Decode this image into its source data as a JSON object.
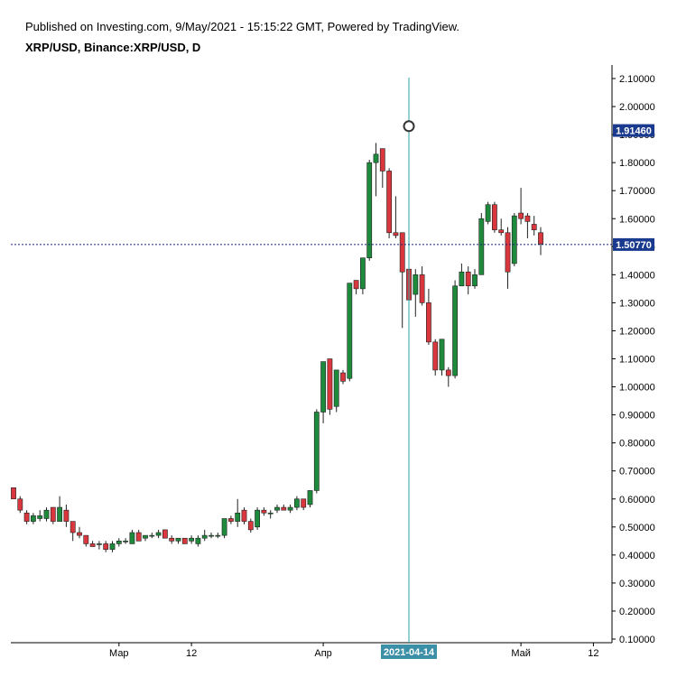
{
  "header": {
    "published": "Published on Investing.com, 9/May/2021 - 15:15:22 GMT, Powered by TradingView.",
    "symbol": "XRP/USD, Binance:XRP/USD, D"
  },
  "colors": {
    "up": "#1e8a3c",
    "down": "#d9363e",
    "crosshair_v": "#2aa4a4",
    "crosshair_h": "#1a237e",
    "price_tag": "#1a3a8f",
    "date_tag": "#3b8fa6",
    "marker": "#333333"
  },
  "chart_data": {
    "type": "candlestick",
    "y_ticks": [
      "2.10000",
      "2.00000",
      "1.90000",
      "1.80000",
      "1.70000",
      "1.60000",
      "1.50000",
      "1.40000",
      "1.30000",
      "1.20000",
      "1.10000",
      "1.00000",
      "0.90000",
      "0.80000",
      "0.70000",
      "0.60000",
      "0.50000",
      "0.40000",
      "0.30000",
      "0.20000",
      "0.10000"
    ],
    "y_tick_values": [
      2.1,
      2.0,
      1.9,
      1.8,
      1.7,
      1.6,
      1.5,
      1.4,
      1.3,
      1.2,
      1.1,
      1.0,
      0.9,
      0.8,
      0.7,
      0.6,
      0.5,
      0.4,
      0.3,
      0.2,
      0.1
    ],
    "ylim": [
      0.1,
      2.1
    ],
    "x_labels": [
      {
        "text": "Мар",
        "index": 16
      },
      {
        "text": "12",
        "index": 27
      },
      {
        "text": "Апр",
        "index": 47
      },
      {
        "text": "Май",
        "index": 77
      },
      {
        "text": "12",
        "index": 88
      }
    ],
    "crosshair": {
      "date_label": "2021-04-14",
      "index": 60,
      "price_label": "1.50770",
      "price": 1.5077,
      "marker_price": 1.93
    },
    "last_price_label": "1.91460",
    "last_price": 1.9146,
    "candles": [
      {
        "o": 0.64,
        "h": 0.64,
        "l": 0.6,
        "c": 0.6
      },
      {
        "o": 0.6,
        "h": 0.61,
        "l": 0.55,
        "c": 0.56
      },
      {
        "o": 0.55,
        "h": 0.56,
        "l": 0.51,
        "c": 0.52
      },
      {
        "o": 0.52,
        "h": 0.55,
        "l": 0.51,
        "c": 0.54
      },
      {
        "o": 0.53,
        "h": 0.56,
        "l": 0.52,
        "c": 0.54
      },
      {
        "o": 0.53,
        "h": 0.57,
        "l": 0.52,
        "c": 0.56
      },
      {
        "o": 0.57,
        "h": 0.57,
        "l": 0.51,
        "c": 0.52
      },
      {
        "o": 0.52,
        "h": 0.61,
        "l": 0.52,
        "c": 0.57
      },
      {
        "o": 0.56,
        "h": 0.58,
        "l": 0.5,
        "c": 0.52
      },
      {
        "o": 0.52,
        "h": 0.52,
        "l": 0.45,
        "c": 0.48
      },
      {
        "o": 0.48,
        "h": 0.5,
        "l": 0.46,
        "c": 0.47
      },
      {
        "o": 0.47,
        "h": 0.47,
        "l": 0.43,
        "c": 0.44
      },
      {
        "o": 0.44,
        "h": 0.45,
        "l": 0.43,
        "c": 0.43
      },
      {
        "o": 0.44,
        "h": 0.45,
        "l": 0.42,
        "c": 0.44
      },
      {
        "o": 0.44,
        "h": 0.45,
        "l": 0.41,
        "c": 0.42
      },
      {
        "o": 0.42,
        "h": 0.45,
        "l": 0.41,
        "c": 0.44
      },
      {
        "o": 0.44,
        "h": 0.46,
        "l": 0.43,
        "c": 0.45
      },
      {
        "o": 0.45,
        "h": 0.46,
        "l": 0.44,
        "c": 0.45
      },
      {
        "o": 0.44,
        "h": 0.49,
        "l": 0.44,
        "c": 0.48
      },
      {
        "o": 0.48,
        "h": 0.49,
        "l": 0.45,
        "c": 0.45
      },
      {
        "o": 0.46,
        "h": 0.47,
        "l": 0.45,
        "c": 0.47
      },
      {
        "o": 0.47,
        "h": 0.48,
        "l": 0.46,
        "c": 0.47
      },
      {
        "o": 0.47,
        "h": 0.49,
        "l": 0.46,
        "c": 0.48
      },
      {
        "o": 0.49,
        "h": 0.49,
        "l": 0.46,
        "c": 0.46
      },
      {
        "o": 0.46,
        "h": 0.47,
        "l": 0.44,
        "c": 0.45
      },
      {
        "o": 0.45,
        "h": 0.46,
        "l": 0.44,
        "c": 0.46
      },
      {
        "o": 0.46,
        "h": 0.46,
        "l": 0.44,
        "c": 0.44
      },
      {
        "o": 0.45,
        "h": 0.47,
        "l": 0.44,
        "c": 0.46
      },
      {
        "o": 0.44,
        "h": 0.47,
        "l": 0.43,
        "c": 0.46
      },
      {
        "o": 0.46,
        "h": 0.49,
        "l": 0.45,
        "c": 0.47
      },
      {
        "o": 0.47,
        "h": 0.48,
        "l": 0.46,
        "c": 0.47
      },
      {
        "o": 0.47,
        "h": 0.48,
        "l": 0.46,
        "c": 0.47
      },
      {
        "o": 0.47,
        "h": 0.53,
        "l": 0.46,
        "c": 0.53
      },
      {
        "o": 0.53,
        "h": 0.54,
        "l": 0.51,
        "c": 0.52
      },
      {
        "o": 0.52,
        "h": 0.6,
        "l": 0.5,
        "c": 0.55
      },
      {
        "o": 0.56,
        "h": 0.57,
        "l": 0.51,
        "c": 0.52
      },
      {
        "o": 0.52,
        "h": 0.53,
        "l": 0.48,
        "c": 0.49
      },
      {
        "o": 0.5,
        "h": 0.57,
        "l": 0.49,
        "c": 0.56
      },
      {
        "o": 0.56,
        "h": 0.57,
        "l": 0.54,
        "c": 0.55
      },
      {
        "o": 0.55,
        "h": 0.56,
        "l": 0.53,
        "c": 0.55
      },
      {
        "o": 0.56,
        "h": 0.58,
        "l": 0.55,
        "c": 0.57
      },
      {
        "o": 0.57,
        "h": 0.58,
        "l": 0.56,
        "c": 0.56
      },
      {
        "o": 0.56,
        "h": 0.58,
        "l": 0.55,
        "c": 0.57
      },
      {
        "o": 0.57,
        "h": 0.61,
        "l": 0.56,
        "c": 0.6
      },
      {
        "o": 0.6,
        "h": 0.6,
        "l": 0.56,
        "c": 0.57
      },
      {
        "o": 0.58,
        "h": 0.63,
        "l": 0.57,
        "c": 0.63
      },
      {
        "o": 0.63,
        "h": 0.92,
        "l": 0.62,
        "c": 0.91
      },
      {
        "o": 0.91,
        "h": 1.09,
        "l": 0.87,
        "c": 1.09
      },
      {
        "o": 1.1,
        "h": 1.1,
        "l": 0.9,
        "c": 0.92
      },
      {
        "o": 0.93,
        "h": 1.06,
        "l": 0.91,
        "c": 1.06
      },
      {
        "o": 1.05,
        "h": 1.06,
        "l": 1.01,
        "c": 1.02
      },
      {
        "o": 1.03,
        "h": 1.37,
        "l": 1.02,
        "c": 1.37
      },
      {
        "o": 1.38,
        "h": 1.38,
        "l": 1.33,
        "c": 1.35
      },
      {
        "o": 1.35,
        "h": 1.46,
        "l": 1.33,
        "c": 1.46
      },
      {
        "o": 1.46,
        "h": 1.81,
        "l": 1.45,
        "c": 1.8
      },
      {
        "o": 1.8,
        "h": 1.87,
        "l": 1.68,
        "c": 1.83
      },
      {
        "o": 1.85,
        "h": 1.85,
        "l": 1.71,
        "c": 1.77
      },
      {
        "o": 1.77,
        "h": 1.78,
        "l": 1.53,
        "c": 1.55
      },
      {
        "o": 1.55,
        "h": 1.68,
        "l": 1.53,
        "c": 1.54
      },
      {
        "o": 1.55,
        "h": 1.55,
        "l": 1.21,
        "c": 1.41
      },
      {
        "o": 1.42,
        "h": 1.42,
        "l": 1.29,
        "c": 1.31
      },
      {
        "o": 1.33,
        "h": 1.42,
        "l": 1.25,
        "c": 1.4
      },
      {
        "o": 1.4,
        "h": 1.43,
        "l": 1.29,
        "c": 1.3
      },
      {
        "o": 1.3,
        "h": 1.35,
        "l": 1.15,
        "c": 1.16
      },
      {
        "o": 1.16,
        "h": 1.17,
        "l": 1.04,
        "c": 1.06
      },
      {
        "o": 1.06,
        "h": 1.17,
        "l": 1.04,
        "c": 1.17
      },
      {
        "o": 1.06,
        "h": 1.07,
        "l": 1.0,
        "c": 1.04
      },
      {
        "o": 1.04,
        "h": 1.38,
        "l": 1.03,
        "c": 1.36
      },
      {
        "o": 1.36,
        "h": 1.44,
        "l": 1.36,
        "c": 1.41
      },
      {
        "o": 1.41,
        "h": 1.43,
        "l": 1.33,
        "c": 1.36
      },
      {
        "o": 1.36,
        "h": 1.42,
        "l": 1.35,
        "c": 1.4
      },
      {
        "o": 1.4,
        "h": 1.62,
        "l": 1.4,
        "c": 1.6
      },
      {
        "o": 1.59,
        "h": 1.66,
        "l": 1.58,
        "c": 1.65
      },
      {
        "o": 1.65,
        "h": 1.66,
        "l": 1.55,
        "c": 1.56
      },
      {
        "o": 1.56,
        "h": 1.6,
        "l": 1.54,
        "c": 1.55
      },
      {
        "o": 1.55,
        "h": 1.57,
        "l": 1.35,
        "c": 1.41
      },
      {
        "o": 1.44,
        "h": 1.62,
        "l": 1.43,
        "c": 1.61
      },
      {
        "o": 1.62,
        "h": 1.71,
        "l": 1.58,
        "c": 1.6
      },
      {
        "o": 1.61,
        "h": 1.62,
        "l": 1.53,
        "c": 1.59
      },
      {
        "o": 1.58,
        "h": 1.61,
        "l": 1.54,
        "c": 1.56
      },
      {
        "o": 1.55,
        "h": 1.57,
        "l": 1.47,
        "c": 1.51
      }
    ]
  }
}
